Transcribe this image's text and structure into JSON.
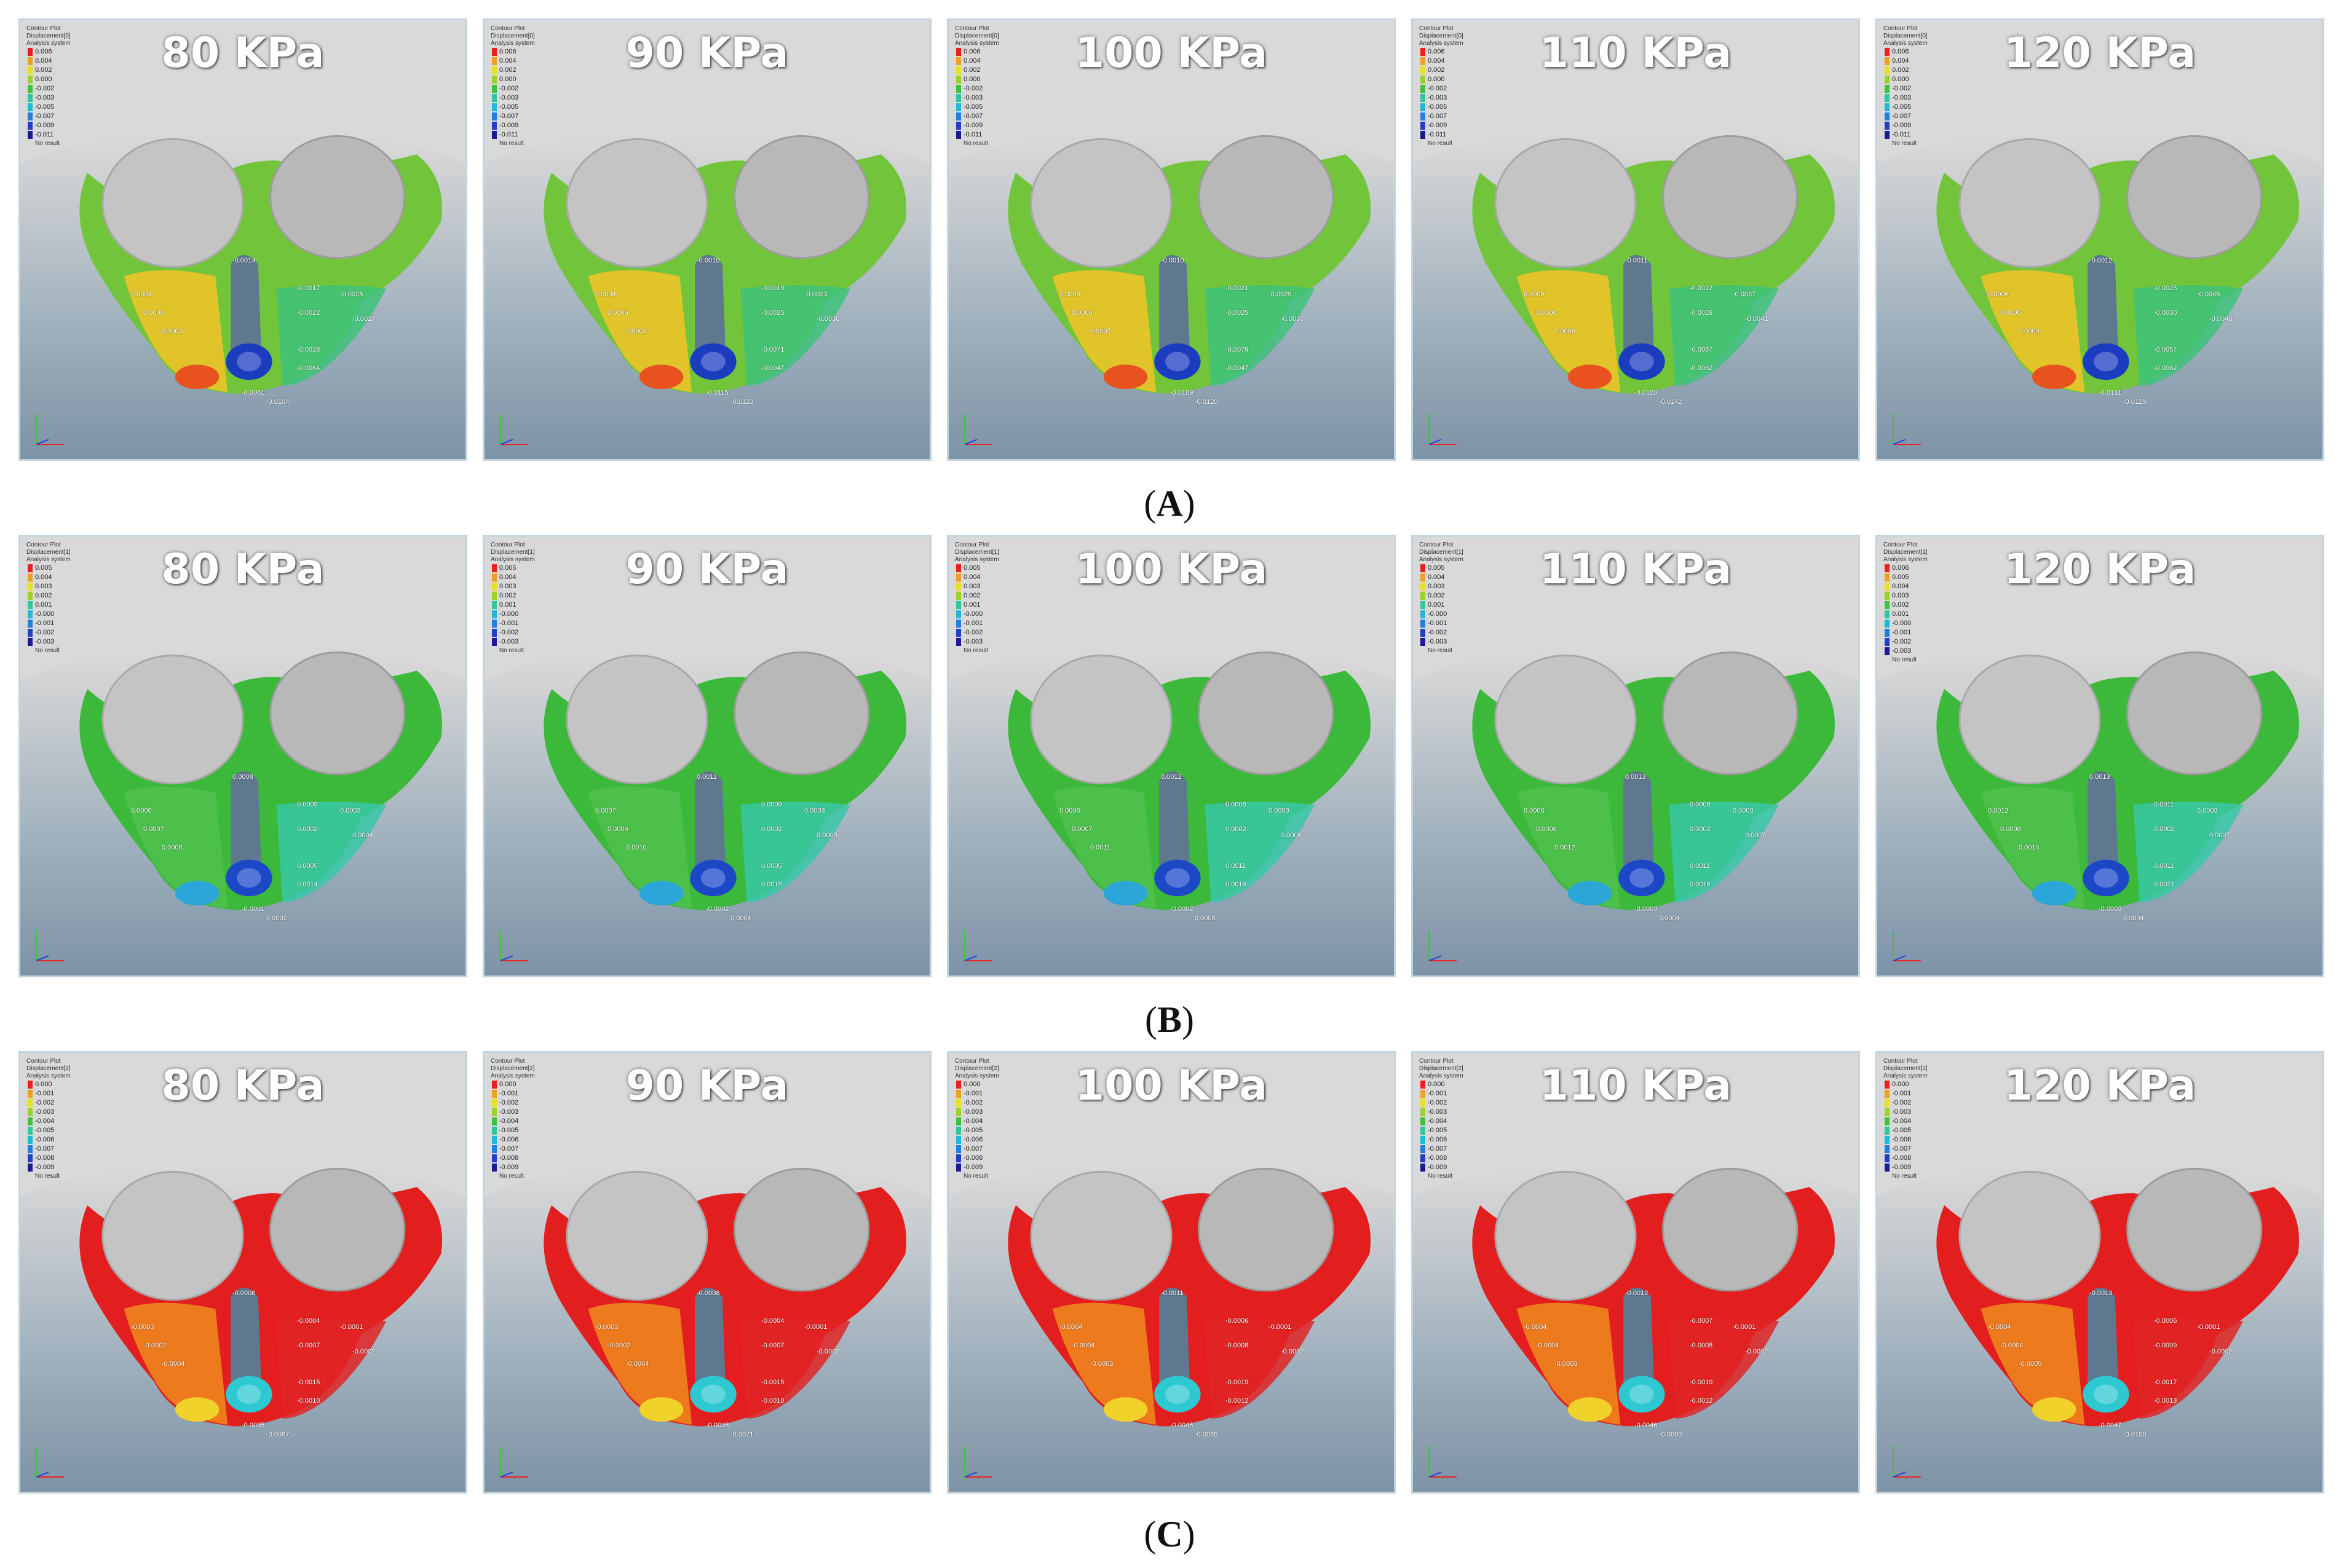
{
  "rows": [
    {
      "label": "A",
      "panels": [
        {
          "title": "80 KPa",
          "legend_header": [
            "Contour Plot",
            "Displacement[0]",
            "Analysis system"
          ],
          "legend_values": [
            "0.006",
            "0.004",
            "0.002",
            "0.000",
            "-0.002",
            "-0.003",
            "-0.005",
            "-0.007",
            "-0.009",
            "-0.011"
          ],
          "legend_footer": "No result",
          "labels": [
            "0.0004",
            "0.0006",
            "0.0002",
            "-0.0014",
            "-0.0017",
            "-0.0022",
            "-0.0025",
            "-0.0027",
            "-0.0028",
            "-0.0064",
            "-0.0061",
            "-0.0104"
          ]
        },
        {
          "title": "90 KPa",
          "legend_header": [
            "Contour Plot",
            "Displacement[0]",
            "Analysis system"
          ],
          "legend_values": [
            "0.006",
            "0.004",
            "0.002",
            "0.000",
            "-0.002",
            "-0.003",
            "-0.005",
            "-0.007",
            "-0.009",
            "-0.011"
          ],
          "legend_footer": "No result",
          "labels": [
            "0.0004",
            "0.0006",
            "0.0002",
            "-0.0010",
            "-0.0019",
            "-0.0025",
            "-0.0023",
            "-0.0030",
            "-0.0071",
            "-0.0047",
            "-0.0115",
            "-0.0123"
          ]
        },
        {
          "title": "100 KPa",
          "legend_header": [
            "Contour Plot",
            "Displacement[0]",
            "Analysis system"
          ],
          "legend_values": [
            "0.006",
            "0.004",
            "0.002",
            "0.000",
            "-0.002",
            "-0.003",
            "-0.005",
            "-0.007",
            "-0.009",
            "-0.011"
          ],
          "legend_footer": "No result",
          "labels": [
            "0.0005",
            "0.0006",
            "0.0007",
            "-0.0010",
            "-0.0021",
            "-0.0025",
            "-0.0029",
            "-0.0037",
            "-0.0079",
            "-0.0047",
            "-0.0109",
            "-0.0120"
          ]
        },
        {
          "title": "110 KPa",
          "legend_header": [
            "Contour Plot",
            "Displacement[0]",
            "Analysis system"
          ],
          "legend_values": [
            "0.006",
            "0.004",
            "0.002",
            "0.000",
            "-0.002",
            "-0.003",
            "-0.005",
            "-0.007",
            "-0.009",
            "-0.011"
          ],
          "legend_footer": "No result",
          "labels": [
            "0.0005",
            "0.0006",
            "0.0006",
            "-0.0011",
            "-0.0012",
            "-0.0029",
            "-0.0037",
            "-0.0041",
            "-0.0087",
            "-0.0062",
            "-0.0120",
            "-0.0142"
          ]
        },
        {
          "title": "120 KPa",
          "legend_header": [
            "Contour Plot",
            "Displacement[0]",
            "Analysis system"
          ],
          "legend_values": [
            "0.006",
            "0.004",
            "0.002",
            "0.000",
            "-0.002",
            "-0.003",
            "-0.005",
            "-0.007",
            "-0.009",
            "-0.011"
          ],
          "legend_footer": "No result",
          "labels": [
            "0.0006",
            "0.0006",
            "0.0009",
            "-0.0012",
            "-0.0025",
            "-0.0030",
            "-0.0045",
            "-0.0048",
            "-0.0057",
            "-0.0062",
            "-0.0131",
            "-0.0129"
          ]
        }
      ]
    },
    {
      "label": "B",
      "panels": [
        {
          "title": "80 KPa",
          "legend_header": [
            "Contour Plot",
            "Displacement[1]",
            "Analysis system"
          ],
          "legend_values": [
            "0.005",
            "0.004",
            "0.003",
            "0.002",
            "0.001",
            "-0.000",
            "-0.001",
            "-0.002",
            "-0.003"
          ],
          "legend_footer": "No result",
          "labels": [
            "0.0006",
            "0.0007",
            "0.0006",
            "0.0008",
            "0.0009",
            "0.0002",
            "0.0003",
            "0.0004",
            "0.0005",
            "0.0014",
            "-0.0001",
            "0.0002"
          ]
        },
        {
          "title": "90 KPa",
          "legend_header": [
            "Contour Plot",
            "Displacement[1]",
            "Analysis system"
          ],
          "legend_values": [
            "0.005",
            "0.004",
            "0.003",
            "0.002",
            "0.001",
            "-0.000",
            "-0.001",
            "-0.002",
            "-0.003"
          ],
          "legend_footer": "No result",
          "labels": [
            "0.0007",
            "0.0006",
            "0.0010",
            "0.0011",
            "0.0009",
            "0.0002",
            "0.0003",
            "0.0005",
            "0.0005",
            "0.0015",
            "-0.0002",
            "0.0004"
          ]
        },
        {
          "title": "100 KPa",
          "legend_header": [
            "Contour Plot",
            "Displacement[1]",
            "Analysis system"
          ],
          "legend_values": [
            "0.005",
            "0.004",
            "0.003",
            "0.002",
            "0.001",
            "-0.000",
            "-0.001",
            "-0.002",
            "-0.003"
          ],
          "legend_footer": "No result",
          "labels": [
            "0.0006",
            "0.0007",
            "0.0011",
            "0.0012",
            "0.0006",
            "0.0002",
            "0.0003",
            "0.0006",
            "0.0011",
            "0.0016",
            "-0.0002",
            "0.0005"
          ]
        },
        {
          "title": "110 KPa",
          "legend_header": [
            "Contour Plot",
            "Displacement[1]",
            "Analysis system"
          ],
          "legend_values": [
            "0.005",
            "0.004",
            "0.003",
            "0.002",
            "0.001",
            "-0.000",
            "-0.001",
            "-0.002",
            "-0.003"
          ],
          "legend_footer": "No result",
          "labels": [
            "0.0006",
            "0.0008",
            "0.0012",
            "0.0013",
            "0.0006",
            "0.0002",
            "0.0003",
            "0.0007",
            "0.0011",
            "0.0018",
            "-0.0003",
            "0.0004"
          ]
        },
        {
          "title": "120 KPa",
          "legend_header": [
            "Contour Plot",
            "Displacement[1]",
            "Analysis system"
          ],
          "legend_values": [
            "0.006",
            "0.005",
            "0.004",
            "0.003",
            "0.002",
            "0.001",
            "-0.000",
            "-0.001",
            "-0.002",
            "-0.003"
          ],
          "legend_footer": "No result",
          "labels": [
            "0.0012",
            "0.0008",
            "0.0014",
            "0.0013",
            "0.0011",
            "0.0002",
            "0.0003",
            "0.0007",
            "0.0011",
            "0.0021",
            "-0.0003",
            "0.0004"
          ]
        }
      ]
    },
    {
      "label": "C",
      "panels": [
        {
          "title": "80 KPa",
          "legend_header": [
            "Contour Plot",
            "Displacement[2]",
            "Analysis system"
          ],
          "legend_values": [
            "0.000",
            "-0.001",
            "-0.002",
            "-0.003",
            "-0.004",
            "-0.005",
            "-0.006",
            "-0.007",
            "-0.008",
            "-0.009"
          ],
          "legend_footer": "No result",
          "labels": [
            "-0.0003",
            "-0.0002",
            "-0.0004",
            "-0.0008",
            "-0.0004",
            "-0.0007",
            "-0.0001",
            "-0.0002",
            "-0.0015",
            "-0.0010",
            "-0.0035",
            "-0.0067"
          ]
        },
        {
          "title": "90 KPa",
          "legend_header": [
            "Contour Plot",
            "Displacement[2]",
            "Analysis system"
          ],
          "legend_values": [
            "0.000",
            "-0.001",
            "-0.002",
            "-0.003",
            "-0.004",
            "-0.005",
            "-0.006",
            "-0.007",
            "-0.008",
            "-0.009"
          ],
          "legend_footer": "No result",
          "labels": [
            "-0.0003",
            "-0.0002",
            "-0.0004",
            "-0.0008",
            "-0.0004",
            "-0.0007",
            "-0.0001",
            "-0.0002",
            "-0.0015",
            "-0.0010",
            "-0.0036",
            "-0.0071"
          ]
        },
        {
          "title": "100 KPa",
          "legend_header": [
            "Contour Plot",
            "Displacement[2]",
            "Analysis system"
          ],
          "legend_values": [
            "0.000",
            "-0.001",
            "-0.002",
            "-0.003",
            "-0.004",
            "-0.005",
            "-0.006",
            "-0.007",
            "-0.008",
            "-0.009"
          ],
          "legend_footer": "No result",
          "labels": [
            "-0.0004",
            "-0.0004",
            "-0.0003",
            "-0.0011",
            "-0.0006",
            "-0.0008",
            "-0.0001",
            "-0.0002",
            "-0.0019",
            "-0.0012",
            "-0.0045",
            "-0.0085"
          ]
        },
        {
          "title": "110 KPa",
          "legend_header": [
            "Contour Plot",
            "Displacement[2]",
            "Analysis system"
          ],
          "legend_values": [
            "0.000",
            "-0.001",
            "-0.002",
            "-0.003",
            "-0.004",
            "-0.005",
            "-0.006",
            "-0.007",
            "-0.008",
            "-0.009"
          ],
          "legend_footer": "No result",
          "labels": [
            "-0.0004",
            "-0.0004",
            "-0.0003",
            "-0.0012",
            "-0.0007",
            "-0.0008",
            "-0.0001",
            "-0.0002",
            "-0.0019",
            "-0.0012",
            "-0.0046",
            "-0.0090"
          ]
        },
        {
          "title": "120 KPa",
          "legend_header": [
            "Contour Plot",
            "Displacement[2]",
            "Analysis system"
          ],
          "legend_values": [
            "0.000",
            "-0.001",
            "-0.002",
            "-0.003",
            "-0.004",
            "-0.005",
            "-0.006",
            "-0.007",
            "-0.008",
            "-0.009"
          ],
          "legend_footer": "No result",
          "labels": [
            "-0.0004",
            "-0.0004",
            "-0.0005",
            "-0.0013",
            "-0.0006",
            "-0.0009",
            "-0.0001",
            "-0.0002",
            "-0.0017",
            "-0.0013",
            "-0.0047",
            "-0.0100"
          ]
        }
      ]
    }
  ],
  "colors": {
    "legend_ramp": [
      "#e81f1f",
      "#f0a020",
      "#e8e020",
      "#9ad22a",
      "#3cc33c",
      "#2ec8a0",
      "#20b8d8",
      "#2080e0",
      "#2040c8",
      "#1a1a9a"
    ],
    "row_a": {
      "base": "#72c43a",
      "left": "#e0c42a",
      "accent": "#e8521e",
      "right": "#3ec37a",
      "core": "#1c3cc0"
    },
    "row_b": {
      "base": "#3cb83a",
      "left": "#4cc04a",
      "accent": "#2aa6d8",
      "right": "#38c8a8",
      "core": "#1c48c8"
    },
    "row_c": {
      "base": "#e21e1e",
      "left": "#ee7a1e",
      "accent": "#f0d22a",
      "right": "#e22424",
      "core": "#2ec8d0"
    }
  }
}
